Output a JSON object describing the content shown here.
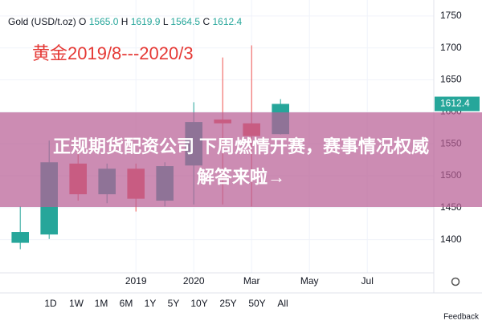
{
  "chart_data": {
    "type": "candlestick",
    "header": {
      "symbol": "Gold (USD/t.oz)",
      "ohlc": [
        {
          "label": "O",
          "value": "1565.0"
        },
        {
          "label": "H",
          "value": "1619.9"
        },
        {
          "label": "L",
          "value": "1564.5"
        },
        {
          "label": "C",
          "value": "1612.4"
        }
      ]
    },
    "annotation": "黄金2019/8---2020/3",
    "x": [
      0,
      1,
      2,
      3,
      4,
      5,
      6,
      7,
      8,
      9
    ],
    "open": [
      1395,
      1408,
      1519,
      1471,
      1511,
      1461,
      1516,
      1588,
      1582,
      1565.0
    ],
    "high": [
      1452,
      1555,
      1541,
      1519,
      1519,
      1521,
      1615,
      1685,
      1704,
      1619.9
    ],
    "low": [
      1385,
      1401,
      1461,
      1457,
      1444,
      1452,
      1455,
      1455,
      1452,
      1564.5
    ],
    "close": [
      1412,
      1521,
      1471,
      1511,
      1464,
      1515,
      1584,
      1582,
      1562,
      1612.4
    ],
    "up_color": "#26a69a",
    "down_color": "#ef5350",
    "last_price_label": "1612.4",
    "xlim": [
      -0.7,
      14.3
    ],
    "xticks": [
      {
        "value": 4,
        "label": "2019"
      },
      {
        "value": 6,
        "label": "2020"
      },
      {
        "value": 8,
        "label": "Mar"
      },
      {
        "value": 10,
        "label": "May"
      },
      {
        "value": 12,
        "label": "Jul"
      }
    ],
    "ylim": [
      1348,
      1775
    ],
    "yticks": [
      1400,
      1450,
      1500,
      1550,
      1600,
      1650,
      1700,
      1750
    ],
    "grid": true
  },
  "ui": {
    "ranges": [
      "1D",
      "1W",
      "1M",
      "6M",
      "1Y",
      "5Y",
      "10Y",
      "25Y",
      "50Y",
      "All"
    ],
    "banner": [
      "正规期货配资公司 下周燃情开赛，赛事情况权威",
      "解答来啦→"
    ],
    "feedback": "Feedback"
  }
}
